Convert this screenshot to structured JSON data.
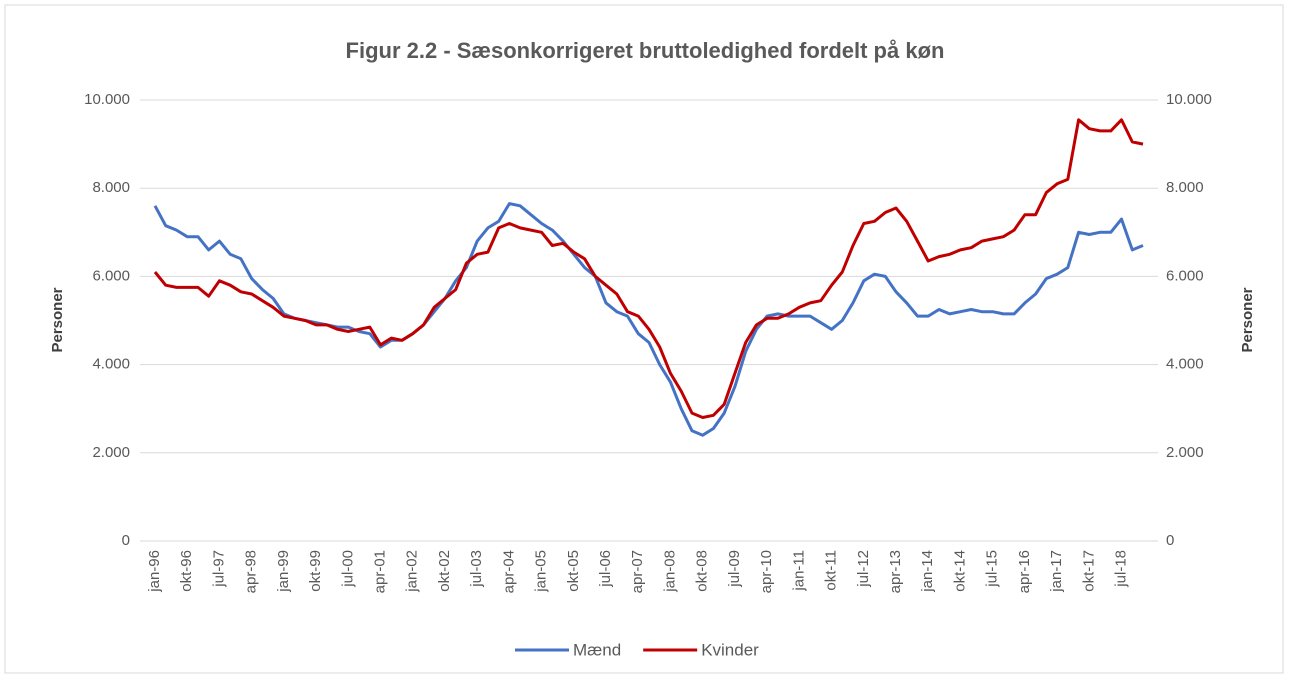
{
  "chart_data": {
    "type": "line",
    "title": "Figur 2.2 - Sæsonkorrigeret bruttoledighed fordelt på køn",
    "y_label": "Personer",
    "y2_label": "Personer",
    "categories": [
      "jan-96",
      null,
      null,
      "okt-96",
      null,
      null,
      "jul-97",
      null,
      null,
      "apr-98",
      null,
      null,
      "jan-99",
      null,
      null,
      "okt-99",
      null,
      null,
      "jul-00",
      null,
      null,
      "apr-01",
      null,
      null,
      "jan-02",
      null,
      null,
      "okt-02",
      null,
      null,
      "jul-03",
      null,
      null,
      "apr-04",
      null,
      null,
      "jan-05",
      null,
      null,
      "okt-05",
      null,
      null,
      "jul-06",
      null,
      null,
      "apr-07",
      null,
      null,
      "jan-08",
      null,
      null,
      "okt-08",
      null,
      null,
      "jul-09",
      null,
      null,
      "apr-10",
      null,
      null,
      "jan-11",
      null,
      null,
      "okt-11",
      null,
      null,
      "jul-12",
      null,
      null,
      "apr-13",
      null,
      null,
      "jan-14",
      null,
      null,
      "okt-14",
      null,
      null,
      "jul-15",
      null,
      null,
      "apr-16",
      null,
      null,
      "jan-17",
      null,
      null,
      "okt-17",
      null,
      null,
      "jul-18",
      null,
      null
    ],
    "series": [
      {
        "name": "Mænd",
        "color": "#4472c4",
        "values": [
          7600,
          7150,
          7050,
          6900,
          6900,
          6600,
          6800,
          6500,
          6400,
          5950,
          5700,
          5500,
          5150,
          5050,
          5000,
          4950,
          4900,
          4850,
          4850,
          4750,
          4700,
          4400,
          4550,
          4550,
          4700,
          4900,
          5200,
          5500,
          5900,
          6200,
          6800,
          7100,
          7250,
          7650,
          7600,
          7400,
          7200,
          7050,
          6800,
          6500,
          6200,
          6000,
          5400,
          5200,
          5100,
          4700,
          4500,
          4000,
          3600,
          3000,
          2500,
          2400,
          2550,
          2900,
          3500,
          4300,
          4800,
          5100,
          5150,
          5100,
          5100,
          5100,
          4950,
          4800,
          5000,
          5400,
          5900,
          6050,
          6000,
          5650,
          5400,
          5100,
          5100,
          5250,
          5150,
          5200,
          5250,
          5200,
          5200,
          5150,
          5150,
          5400,
          5600,
          5950,
          6050,
          6200,
          7000,
          6950,
          7000,
          7000,
          7300,
          6600,
          6700
        ]
      },
      {
        "name": "Kvinder",
        "color": "#c00000",
        "values": [
          6100,
          5800,
          5750,
          5750,
          5750,
          5550,
          5900,
          5800,
          5650,
          5600,
          5450,
          5300,
          5100,
          5050,
          5000,
          4900,
          4900,
          4800,
          4750,
          4800,
          4850,
          4450,
          4600,
          4550,
          4700,
          4900,
          5300,
          5500,
          5700,
          6300,
          6500,
          6550,
          7100,
          7200,
          7100,
          7050,
          7000,
          6700,
          6750,
          6550,
          6400,
          6000,
          5800,
          5600,
          5200,
          5100,
          4800,
          4400,
          3800,
          3400,
          2900,
          2800,
          2850,
          3100,
          3800,
          4500,
          4900,
          5050,
          5050,
          5150,
          5300,
          5400,
          5450,
          5800,
          6100,
          6700,
          7200,
          7250,
          7450,
          7550,
          7250,
          6800,
          6350,
          6450,
          6500,
          6600,
          6650,
          6800,
          6850,
          6900,
          7050,
          7400,
          7400,
          7900,
          8100,
          8200,
          9550,
          9350,
          9300,
          9300,
          9550,
          9050,
          9000
        ]
      }
    ],
    "ylim": [
      0,
      10000
    ],
    "yticks": [
      0,
      {
        "value": 2000,
        "label": "2.000"
      },
      {
        "value": 4000,
        "label": "4.000"
      },
      {
        "value": 6000,
        "label": "6.000"
      },
      {
        "value": 8000,
        "label": "8.000"
      },
      {
        "value": 10000,
        "label": "10.000"
      }
    ],
    "y2lim": [
      0,
      10000
    ],
    "y2ticks": [
      0,
      {
        "value": 2000,
        "label": "2.000"
      },
      {
        "value": 4000,
        "label": "4.000"
      },
      {
        "value": 6000,
        "label": "6.000"
      },
      {
        "value": 8000,
        "label": "8.000"
      },
      {
        "value": 10000,
        "label": "10.000"
      }
    ],
    "grid": true,
    "legend": "bottom"
  }
}
